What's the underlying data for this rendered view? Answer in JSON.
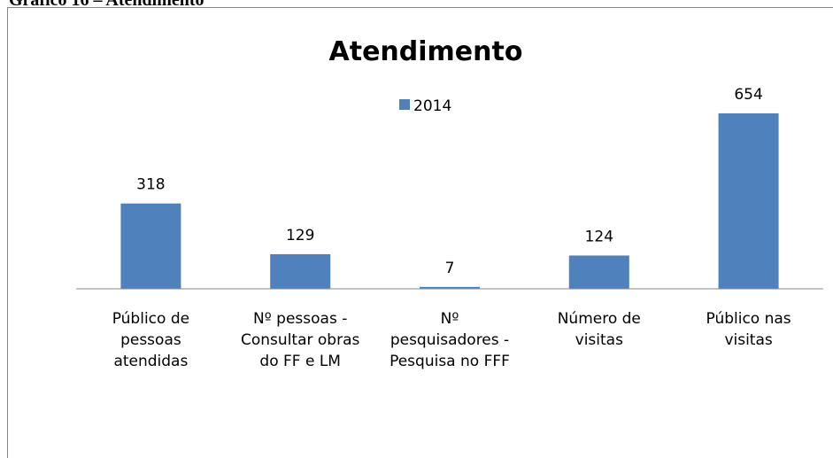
{
  "caption": "Gráfico 16 – Atendimento",
  "chart_data": {
    "type": "bar",
    "title": "Atendimento",
    "categories": [
      "Público de\npessoas\natendidas",
      "Nº pessoas -\nConsultar obras\ndo FF e LM",
      "Nº\npesquisadores -\nPesquisa no FFF",
      "Número de\nvisitas",
      "Público nas\nvisitas"
    ],
    "series": [
      {
        "name": "2014",
        "color": "#4f81bd",
        "values": [
          318,
          129,
          7,
          124,
          654
        ]
      }
    ],
    "ylim": [
      0,
      700
    ]
  }
}
